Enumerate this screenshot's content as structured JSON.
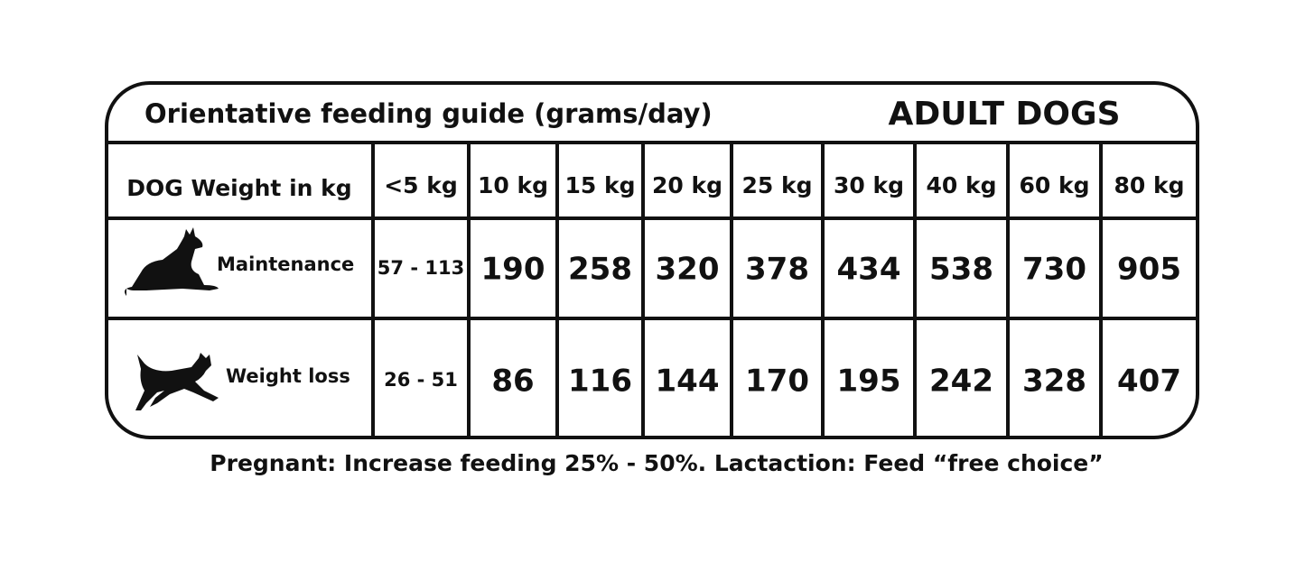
{
  "header": {
    "title": "Orientative feeding guide (grams/day)",
    "badge": "ADULT DOGS"
  },
  "table": {
    "columns": [
      "DOG Weight in kg",
      "<5 kg",
      "10 kg",
      "15 kg",
      "20 kg",
      "25 kg",
      "30 kg",
      "40 kg",
      "60 kg",
      "80 kg"
    ],
    "rows": [
      {
        "label": "Maintenance",
        "values": [
          "57 - 113",
          190,
          258,
          320,
          378,
          434,
          538,
          730,
          905
        ]
      },
      {
        "label": "Weight loss",
        "values": [
          "26 - 51",
          86,
          116,
          144,
          170,
          195,
          242,
          328,
          407
        ]
      }
    ]
  },
  "footer": {
    "note": "Pregnant: Increase feeding 25% - 50%. Lactaction: Feed “free choice”"
  }
}
